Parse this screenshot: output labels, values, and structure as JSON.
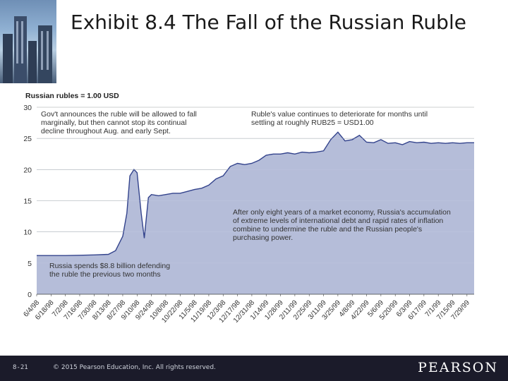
{
  "slide": {
    "title": "Exhibit 8.4  The Fall of the Russian Ruble",
    "page_number": "8-21",
    "copyright": "© 2015 Pearson Education, Inc. All rights reserved.",
    "brand": "PEARSON"
  },
  "colors": {
    "area_fill": "#b5bdd9",
    "area_line": "#33438c",
    "grid": "#9aa3a0",
    "footer_bg": "#1b1b2a"
  },
  "chart_data": {
    "type": "area",
    "title": "Russian rubles = 1.00 USD",
    "ylim": [
      0,
      30
    ],
    "yticks": [
      0,
      5,
      10,
      15,
      20,
      25,
      30
    ],
    "grid": true,
    "xtick_labels": [
      "6/4/98",
      "6/18/98",
      "7/2/98",
      "7/16/98",
      "7/30/98",
      "8/13/98",
      "8/27/98",
      "9/10/98",
      "9/24/98",
      "10/8/98",
      "10/22/98",
      "11/5/98",
      "11/19/98",
      "12/3/98",
      "12/17/98",
      "12/31/98",
      "1/14/99",
      "1/28/99",
      "2/11/99",
      "2/25/99",
      "3/11/99",
      "3/25/99",
      "4/8/99",
      "4/22/99",
      "5/6/99",
      "5/20/99",
      "6/3/99",
      "6/17/99",
      "7/1/99",
      "7/15/99",
      "7/29/99"
    ],
    "x": [
      "1998-06-04",
      "1998-06-18",
      "1998-07-02",
      "1998-07-16",
      "1998-07-30",
      "1998-08-13",
      "1998-08-20",
      "1998-08-27",
      "1998-08-31",
      "1998-09-03",
      "1998-09-07",
      "1998-09-10",
      "1998-09-14",
      "1998-09-17",
      "1998-09-21",
      "1998-09-24",
      "1998-10-01",
      "1998-10-08",
      "1998-10-15",
      "1998-10-22",
      "1998-10-29",
      "1998-11-05",
      "1998-11-12",
      "1998-11-19",
      "1998-11-26",
      "1998-12-03",
      "1998-12-10",
      "1998-12-17",
      "1998-12-24",
      "1998-12-31",
      "1999-01-07",
      "1999-01-14",
      "1999-01-21",
      "1999-01-28",
      "1999-02-04",
      "1999-02-11",
      "1999-02-18",
      "1999-02-25",
      "1999-03-04",
      "1999-03-11",
      "1999-03-18",
      "1999-03-25",
      "1999-04-01",
      "1999-04-08",
      "1999-04-15",
      "1999-04-22",
      "1999-04-29",
      "1999-05-06",
      "1999-05-13",
      "1999-05-20",
      "1999-05-27",
      "1999-06-03",
      "1999-06-10",
      "1999-06-17",
      "1999-06-24",
      "1999-07-01",
      "1999-07-08",
      "1999-07-15",
      "1999-07-22",
      "1999-07-29",
      "1999-08-05"
    ],
    "values": [
      6.2,
      6.2,
      6.2,
      6.25,
      6.3,
      6.4,
      7.0,
      9.3,
      13.0,
      19.0,
      20.0,
      19.5,
      13.0,
      9.0,
      15.5,
      16.0,
      15.8,
      16.0,
      16.2,
      16.2,
      16.5,
      16.8,
      17.0,
      17.5,
      18.5,
      19.0,
      20.5,
      21.0,
      20.8,
      21.0,
      21.5,
      22.3,
      22.5,
      22.5,
      22.7,
      22.5,
      22.8,
      22.7,
      22.8,
      23.0,
      24.8,
      26.0,
      24.6,
      24.8,
      25.5,
      24.4,
      24.3,
      24.8,
      24.2,
      24.3,
      24.0,
      24.5,
      24.3,
      24.4,
      24.2,
      24.3,
      24.2,
      24.3,
      24.2,
      24.3,
      24.3
    ],
    "annotations": [
      "Gov't announces the ruble will be allowed to fall marginally, but then cannot stop its continual decline throughout Aug. and early Sept.",
      "Ruble's value continues to deteriorate for months until settling at roughly RUB25 = USD1.00",
      "After only eight years of a market economy, Russia's accumulation of extreme levels of international debt and rapid rates of inflation combine to undermine the ruble and the Russian people's purchasing power.",
      "Russia spends $8.8 billion defending the ruble the previous two months"
    ]
  }
}
